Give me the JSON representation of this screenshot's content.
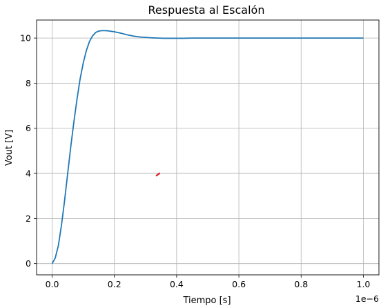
{
  "chart_data": {
    "type": "line",
    "title": "Respuesta al Escalón",
    "xlabel": "Tiempo [s]",
    "ylabel": "Vout [V]",
    "x_offset_label": "1e−6",
    "x_tick_labels": [
      "0.0",
      "0.2",
      "0.4",
      "0.6",
      "0.8",
      "1.0"
    ],
    "y_tick_labels": [
      "0",
      "2",
      "4",
      "6",
      "8",
      "10"
    ],
    "xlim": [
      -0.05,
      1.05
    ],
    "ylim": [
      -0.5,
      10.8
    ],
    "grid": true,
    "series": [
      {
        "color": "#1f77b4",
        "x": [
          0.0,
          0.01,
          0.02,
          0.03,
          0.04,
          0.05,
          0.06,
          0.07,
          0.08,
          0.09,
          0.1,
          0.11,
          0.12,
          0.13,
          0.14,
          0.15,
          0.16,
          0.17,
          0.18,
          0.19,
          0.2,
          0.21,
          0.22,
          0.24,
          0.26,
          0.28,
          0.3,
          0.32,
          0.34,
          0.36,
          0.38,
          0.4,
          0.42,
          0.45,
          0.5,
          0.6,
          0.7,
          0.8,
          0.9,
          1.0
        ],
        "y": [
          0.0,
          0.25,
          0.8,
          1.7,
          2.8,
          4.0,
          5.2,
          6.3,
          7.3,
          8.2,
          8.9,
          9.45,
          9.85,
          10.1,
          10.25,
          10.31,
          10.33,
          10.33,
          10.32,
          10.3,
          10.28,
          10.25,
          10.22,
          10.15,
          10.09,
          10.05,
          10.03,
          10.01,
          10.0,
          9.99,
          9.99,
          9.99,
          9.99,
          10.0,
          10.0,
          10.0,
          10.0,
          10.0,
          10.0,
          10.0
        ]
      }
    ],
    "annotations": [
      {
        "type": "marker",
        "color": "#d62728",
        "x": 0.34,
        "y": 3.95
      }
    ]
  }
}
